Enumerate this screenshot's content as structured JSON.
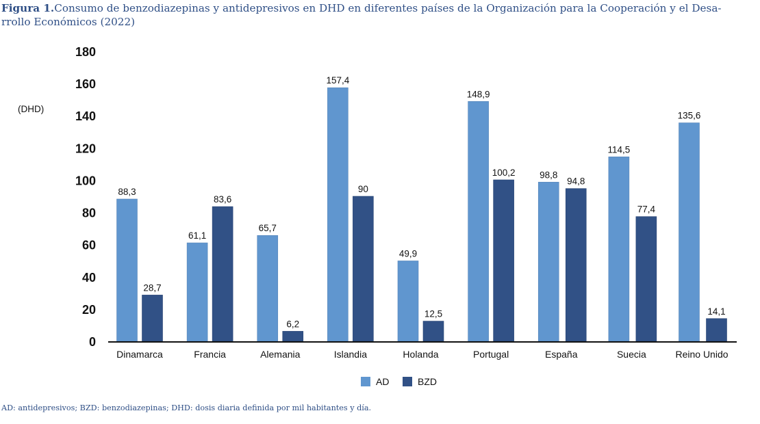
{
  "figure": {
    "label": "Figura 1.",
    "title": "Consumo de benzodiazepinas y antidepresivos en DHD en diferentes países de la Organización para la Cooperación y el Desa-rrollo Económicos (2022)",
    "title_line1": "Consumo de benzodiazepinas y antidepresivos en DHD en diferentes países de la Organización para la Cooperación y el Desa-",
    "title_line2": "rrollo Económicos (2022)",
    "footnote": "AD: antidepresivos; BZD: benzodiazepinas; DHD: dosis diaria definida por mil habitantes y día."
  },
  "chart_data": {
    "type": "bar",
    "title": "Consumo de benzodiazepinas y antidepresivos en DHD en diferentes países de la Organización para la Cooperación y el Desarrollo Económicos (2022)",
    "xlabel": "",
    "ylabel": "(DHD)",
    "ylim": [
      0,
      180
    ],
    "yticks": [
      0,
      20,
      40,
      60,
      80,
      100,
      120,
      140,
      160,
      180
    ],
    "ytick_labels": [
      "0",
      "20",
      "40",
      "60",
      "80",
      "100",
      "120",
      "140",
      "160",
      "180"
    ],
    "grid": false,
    "legend_position": "bottom-center",
    "categories": [
      "Dinamarca",
      "Francia",
      "Alemania",
      "Islandia",
      "Holanda",
      "Portugal",
      "España",
      "Suecia",
      "Reino Unido"
    ],
    "series": [
      {
        "name": "AD",
        "color": "#6096cf",
        "values": [
          88.3,
          61.1,
          65.7,
          157.4,
          49.9,
          148.9,
          98.8,
          114.5,
          135.6
        ],
        "labels": [
          "88,3",
          "61,1",
          "65,7",
          "157,4",
          "49,9",
          "148,9",
          "98,8",
          "114,5",
          "135,6"
        ]
      },
      {
        "name": "BZD",
        "color": "#315186",
        "values": [
          28.7,
          83.6,
          6.2,
          90,
          12.5,
          100.2,
          94.8,
          77.4,
          14.1
        ],
        "labels": [
          "28,7",
          "83,6",
          "6,2",
          "90",
          "12,5",
          "100,2",
          "94,8",
          "77,4",
          "14,1"
        ]
      }
    ]
  }
}
